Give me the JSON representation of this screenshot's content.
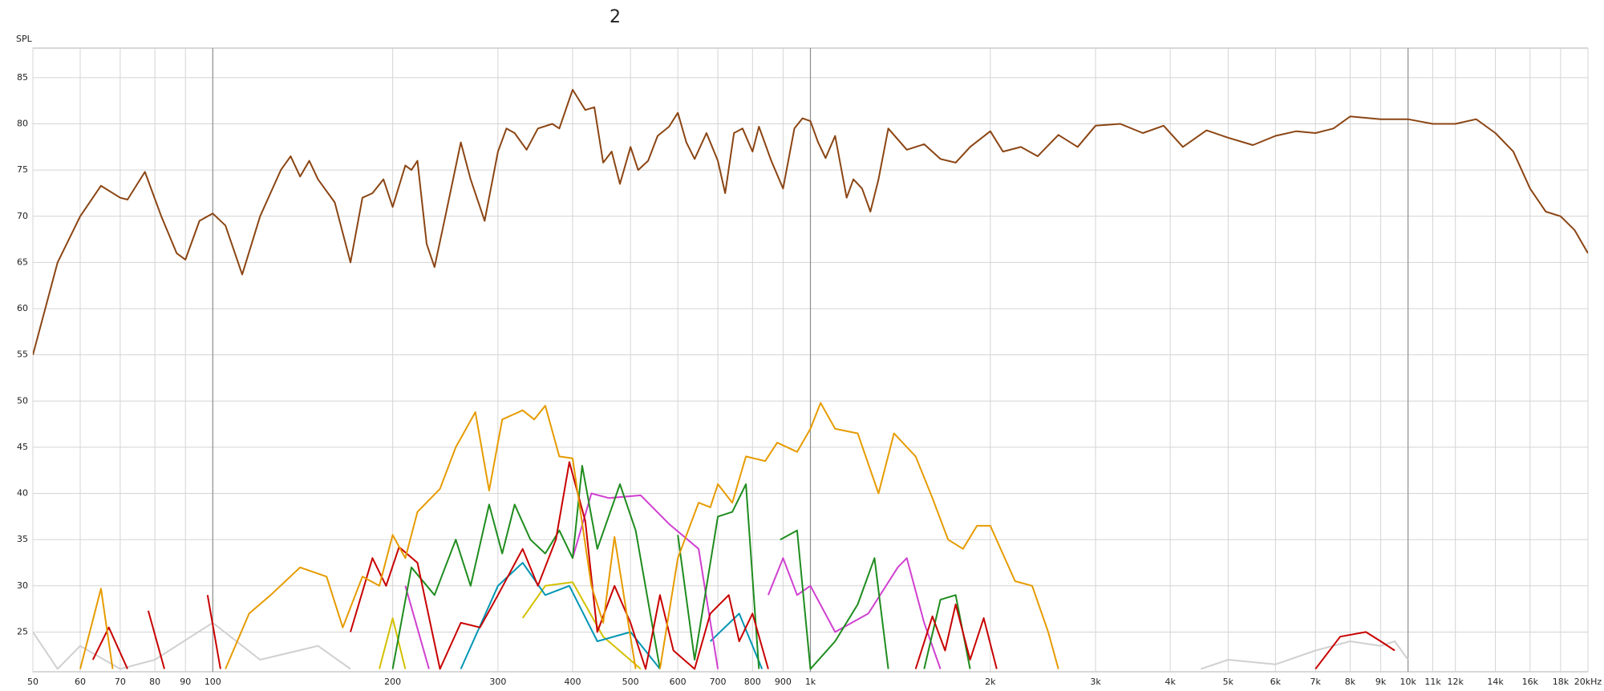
{
  "chart_data": {
    "type": "line",
    "title": "2",
    "y_label": "SPL",
    "log_x": true,
    "grid": true,
    "xlim": [
      50,
      20000
    ],
    "ylim": [
      20.7,
      88.2
    ],
    "xticks": [
      50,
      60,
      70,
      80,
      90,
      100,
      200,
      300,
      400,
      500,
      600,
      700,
      800,
      900,
      {
        "value": 1000,
        "label": "1k"
      },
      {
        "value": 2000,
        "label": "2k"
      },
      {
        "value": 3000,
        "label": "3k"
      },
      {
        "value": 4000,
        "label": "4k"
      },
      {
        "value": 5000,
        "label": "5k"
      },
      {
        "value": 6000,
        "label": "6k"
      },
      {
        "value": 7000,
        "label": "7k"
      },
      {
        "value": 8000,
        "label": "8k"
      },
      {
        "value": 9000,
        "label": "9k"
      },
      {
        "value": 10000,
        "label": "10k"
      },
      {
        "value": 11000,
        "label": "11k"
      },
      {
        "value": 12000,
        "label": "12k"
      },
      {
        "value": 14000,
        "label": "14k"
      },
      {
        "value": 16000,
        "label": "16k"
      },
      {
        "value": 18000,
        "label": "18k"
      },
      {
        "value": 20000,
        "label": "20kHz"
      }
    ],
    "yticks": [
      25,
      30,
      35,
      40,
      45,
      50,
      55,
      60,
      65,
      70,
      75,
      80,
      85
    ],
    "series": [
      {
        "color": "#8b4513",
        "x": [
          50,
          55,
          60,
          65,
          70,
          72,
          77,
          82,
          87,
          90,
          95,
          100,
          105,
          112,
          120,
          130,
          135,
          140,
          145,
          150,
          160,
          170,
          178,
          185,
          193,
          200,
          210,
          215,
          220,
          228,
          235,
          245,
          260,
          270,
          285,
          300,
          310,
          320,
          335,
          350,
          370,
          380,
          400,
          420,
          435,
          450,
          465,
          480,
          500,
          515,
          535,
          555,
          580,
          600,
          620,
          640,
          670,
          700,
          720,
          745,
          770,
          800,
          820,
          860,
          900,
          940,
          970,
          1000,
          1030,
          1060,
          1100,
          1150,
          1180,
          1220,
          1260,
          1300,
          1350,
          1450,
          1550,
          1650,
          1750,
          1850,
          2000,
          2100,
          2250,
          2400,
          2600,
          2800,
          3000,
          3300,
          3600,
          3900,
          4200,
          4600,
          5000,
          5500,
          6000,
          6500,
          7000,
          7500,
          8000,
          9000,
          10000,
          11000,
          12000,
          13000,
          14000,
          15000,
          16000,
          17000,
          18000,
          19000,
          20000
        ],
        "values": [
          55,
          65,
          70,
          73.3,
          72,
          71.8,
          74.8,
          70,
          66,
          65.3,
          69.5,
          70.3,
          69,
          63.7,
          70,
          75,
          76.5,
          74.3,
          76,
          74,
          71.5,
          65,
          72,
          72.5,
          74,
          71,
          75.5,
          75,
          76,
          67,
          64.5,
          70,
          78,
          74,
          69.5,
          77,
          79.5,
          79,
          77.2,
          79.5,
          80,
          79.5,
          83.7,
          81.5,
          81.8,
          75.8,
          77,
          73.5,
          77.5,
          75,
          76,
          78.7,
          79.7,
          81.2,
          78,
          76.2,
          79,
          76,
          72.5,
          79,
          79.5,
          77,
          79.7,
          76,
          73,
          79.5,
          80.6,
          80.3,
          78,
          76.3,
          78.7,
          72,
          74,
          73,
          70.5,
          74,
          79.5,
          77.2,
          77.8,
          76.2,
          75.8,
          77.5,
          79.2,
          77,
          77.5,
          76.5,
          78.8,
          77.5,
          79.8,
          80,
          79,
          79.8,
          77.5,
          79.3,
          78.5,
          77.7,
          78.7,
          79.2,
          79,
          79.5,
          80.8,
          80.5,
          80.5,
          80,
          80,
          80.5,
          79,
          77,
          73,
          70.5,
          70,
          68.5,
          66
        ]
      },
      {
        "color": "#e69b00",
        "x": [
          60,
          65,
          68,
          80,
          105,
          115,
          125,
          140,
          155,
          165,
          178,
          190,
          200,
          210,
          220,
          240,
          255,
          275,
          290,
          305,
          330,
          345,
          360,
          380,
          400,
          430,
          450,
          470,
          490,
          510,
          540,
          560,
          600,
          650,
          680,
          700,
          740,
          780,
          840,
          880,
          950,
          1000,
          1040,
          1100,
          1200,
          1300,
          1380,
          1500,
          1600,
          1700,
          1800,
          1900,
          2000,
          2200,
          2350,
          2500,
          2600
        ],
        "values": [
          21,
          29.7,
          21,
          null,
          21,
          27,
          29,
          32,
          31,
          25.5,
          31,
          30,
          35.5,
          33,
          38,
          40.5,
          45,
          48.8,
          40.3,
          48,
          49,
          48,
          49.5,
          44,
          43.8,
          30,
          26,
          35.3,
          28,
          21,
          null,
          21,
          33,
          39,
          38.5,
          41,
          39,
          44,
          43.5,
          45.5,
          44.5,
          47,
          49.8,
          47,
          46.5,
          40,
          46.5,
          44,
          39.5,
          35,
          34,
          36.5,
          36.5,
          30.5,
          30,
          25,
          21
        ]
      },
      {
        "color": "#c80000",
        "x": [
          63,
          67,
          72,
          75,
          78,
          83,
          90,
          98,
          103,
          140,
          170,
          185,
          195,
          205,
          220,
          240,
          260,
          280,
          300,
          330,
          350,
          375,
          395,
          420,
          440,
          470,
          500,
          530,
          560,
          590,
          640,
          680,
          730,
          760,
          800,
          850,
          1200,
          1500,
          1600,
          1680,
          1750,
          1850,
          1950,
          2050,
          4000,
          7000,
          7700,
          8500,
          9000,
          9500
        ],
        "values": [
          22,
          25.5,
          21,
          null,
          27.3,
          21,
          null,
          29,
          21,
          null,
          25,
          33,
          30,
          34.2,
          32.5,
          21,
          26,
          25.5,
          29,
          34,
          30,
          35,
          43.4,
          37,
          25,
          30,
          26,
          21,
          29,
          23,
          21,
          27,
          29,
          24,
          27,
          21,
          null,
          21,
          26.7,
          23,
          28,
          22,
          26.5,
          21,
          null,
          21,
          24.5,
          25,
          24,
          23
        ]
      },
      {
        "color": "#1e8c1e",
        "x": [
          200,
          215,
          235,
          255,
          270,
          290,
          305,
          320,
          340,
          360,
          380,
          400,
          415,
          440,
          480,
          510,
          560,
          580,
          600,
          640,
          700,
          740,
          780,
          820,
          860,
          890,
          950,
          1000,
          1100,
          1200,
          1280,
          1350,
          1450,
          1550,
          1650,
          1750,
          1850
        ],
        "values": [
          21,
          32,
          29,
          35,
          30,
          38.8,
          33.5,
          38.8,
          35,
          33.5,
          36,
          33,
          43,
          34,
          41,
          36,
          21,
          null,
          35.5,
          22,
          37.5,
          38,
          41,
          21,
          null,
          35,
          36,
          21,
          24,
          28,
          33,
          21,
          null,
          21,
          28.5,
          29,
          21
        ]
      },
      {
        "color": "#d040d0",
        "x": [
          210,
          230,
          300,
          400,
          430,
          460,
          520,
          580,
          650,
          700,
          780,
          850,
          900,
          950,
          1000,
          1100,
          1250,
          1400,
          1450,
          1550,
          1650
        ],
        "values": [
          30,
          21,
          null,
          33,
          40,
          39.5,
          39.8,
          36.7,
          34,
          21,
          null,
          29,
          33,
          29,
          30,
          25,
          27,
          32,
          33,
          26,
          21
        ]
      },
      {
        "color": "#0096b4",
        "x": [
          260,
          300,
          330,
          360,
          395,
          440,
          500,
          560,
          620,
          680,
          760,
          830
        ],
        "values": [
          21,
          30,
          32.5,
          29,
          30,
          24,
          25,
          21,
          null,
          24,
          27,
          21
        ]
      },
      {
        "color": "#d4c000",
        "x": [
          190,
          200,
          210,
          270,
          330,
          360,
          400,
          450,
          520
        ],
        "values": [
          21,
          26.5,
          21,
          null,
          26.5,
          30,
          30.4,
          24.5,
          21
        ]
      },
      {
        "color": "#d0d0d0",
        "x": [
          50,
          55,
          60,
          70,
          80,
          100,
          120,
          150,
          170,
          1000,
          4500,
          5000,
          6000,
          7000,
          8000,
          9000,
          9500,
          10000
        ],
        "values": [
          25,
          21,
          23.5,
          21,
          22,
          26,
          22,
          23.5,
          21,
          null,
          21,
          22,
          21.5,
          23,
          24,
          23.5,
          24,
          22
        ]
      }
    ]
  }
}
